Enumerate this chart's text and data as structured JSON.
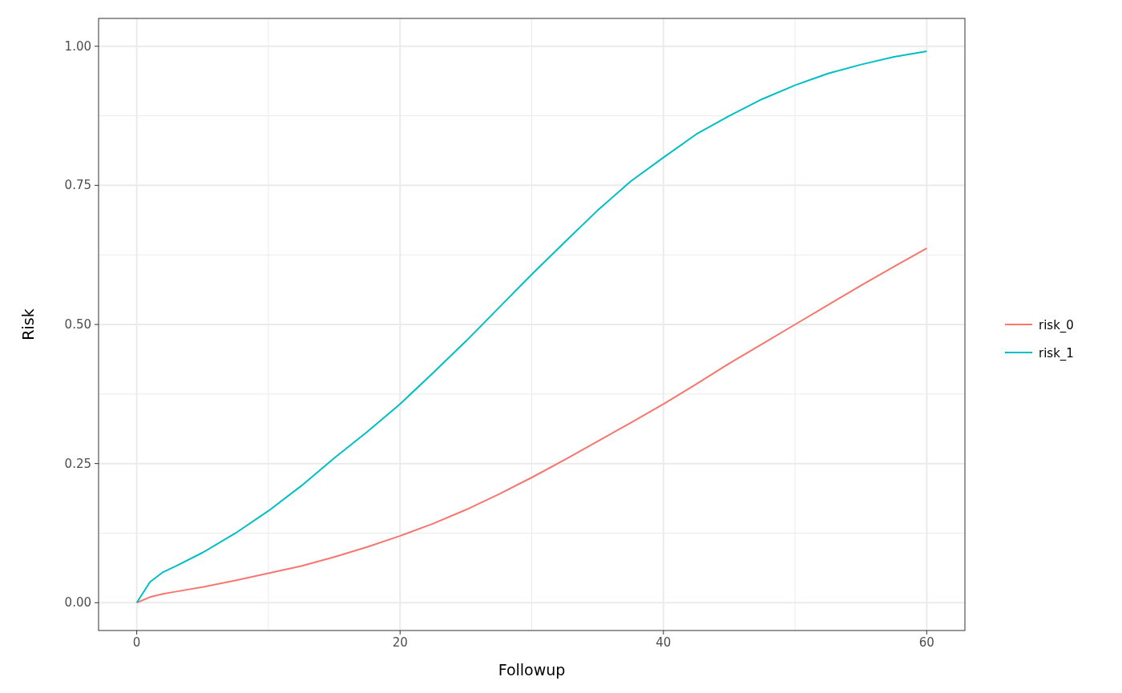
{
  "chart_data": {
    "type": "line",
    "xlabel": "Followup",
    "ylabel": "Risk",
    "x": [
      0,
      1,
      2,
      3,
      5,
      7.5,
      10,
      12.5,
      15,
      17.5,
      20,
      22.5,
      25,
      27.5,
      30,
      32.5,
      35,
      37.5,
      40,
      42.5,
      45,
      47.5,
      50,
      52.5,
      55,
      57.5,
      60
    ],
    "series": [
      {
        "name": "risk_0",
        "color": "#f8766d",
        "values": [
          0,
          0.01,
          0.016,
          0.02,
          0.028,
          0.04,
          0.053,
          0.066,
          0.082,
          0.1,
          0.12,
          0.142,
          0.167,
          0.195,
          0.225,
          0.257,
          0.29,
          0.323,
          0.357,
          0.393,
          0.43,
          0.465,
          0.5,
          0.535,
          0.57,
          0.604,
          0.637
        ]
      },
      {
        "name": "risk_1",
        "color": "#00bfc4",
        "values": [
          0,
          0.037,
          0.055,
          0.066,
          0.09,
          0.125,
          0.165,
          0.21,
          0.26,
          0.307,
          0.357,
          0.413,
          0.47,
          0.53,
          0.59,
          0.648,
          0.705,
          0.757,
          0.8,
          0.842,
          0.875,
          0.905,
          0.93,
          0.951,
          0.967,
          0.981,
          0.991
        ]
      }
    ],
    "xlim": [
      -2.9,
      62.9
    ],
    "xticks": [
      0,
      20,
      40,
      60
    ],
    "ylim": [
      -0.05,
      1.05
    ],
    "yticks": [
      {
        "value": 0,
        "label": "0.00"
      },
      {
        "value": 0.25,
        "label": "0.25"
      },
      {
        "value": 0.5,
        "label": "0.50"
      },
      {
        "value": 0.75,
        "label": "0.75"
      },
      {
        "value": 1,
        "label": "1.00"
      }
    ],
    "grid": true,
    "legend": "right",
    "marker": "none",
    "line_style": "solid"
  }
}
